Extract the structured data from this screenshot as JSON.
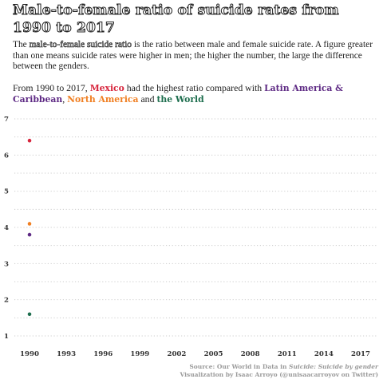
{
  "header": {
    "title": "Male-to-female ratio of suicide rates from 1990 to 2017",
    "desc_term": "male-to-female suicide ratio",
    "desc_a": "The ",
    "desc_b": " is the ratio between male and female suicide rate. A figure greater than one means suicide rates were higher in men; the higher the number, the large the difference between the genders.",
    "lead_a": "From 1990 to 2017, ",
    "lead_mexico": "Mexico",
    "lead_b": " had the highest ratio compared with ",
    "lead_latam": "Latin America & Caribbean",
    "lead_c": ", ",
    "lead_na": "North America",
    "lead_d": " and ",
    "lead_world": "the World"
  },
  "colors": {
    "mexico": "#d7263d",
    "latin_america_caribbean": "#5e2a84",
    "north_america": "#f07f22",
    "world": "#1e6e4e",
    "grid": "#cccccc"
  },
  "footer": {
    "source_a": "Source: Our World in Data in ",
    "source_title": "Suicide: Suicide by gender",
    "credit": "Visualization by Isaac Arroyo (@unisaacarroyov on Twitter)"
  },
  "chart_data": {
    "type": "scatter",
    "x_ticks": [
      "1990",
      "1993",
      "1996",
      "1999",
      "2002",
      "2005",
      "2008",
      "2011",
      "2014",
      "2017"
    ],
    "y_ticks": [
      "1",
      "2",
      "3",
      "4",
      "5",
      "6",
      "7"
    ],
    "xlim": [
      1990,
      2017
    ],
    "ylim": [
      1,
      7
    ],
    "grid": "horizontal dotted",
    "legend": "none",
    "series": [
      {
        "name": "Mexico",
        "color_key": "mexico",
        "points": [
          {
            "x": 1990,
            "y": 6.4
          }
        ]
      },
      {
        "name": "North America",
        "color_key": "north_america",
        "points": [
          {
            "x": 1990,
            "y": 4.1
          }
        ]
      },
      {
        "name": "Latin America & Caribbean",
        "color_key": "latin_america_caribbean",
        "points": [
          {
            "x": 1990,
            "y": 3.8
          }
        ]
      },
      {
        "name": "the World",
        "color_key": "world",
        "points": [
          {
            "x": 1990,
            "y": 1.6
          }
        ]
      }
    ]
  }
}
